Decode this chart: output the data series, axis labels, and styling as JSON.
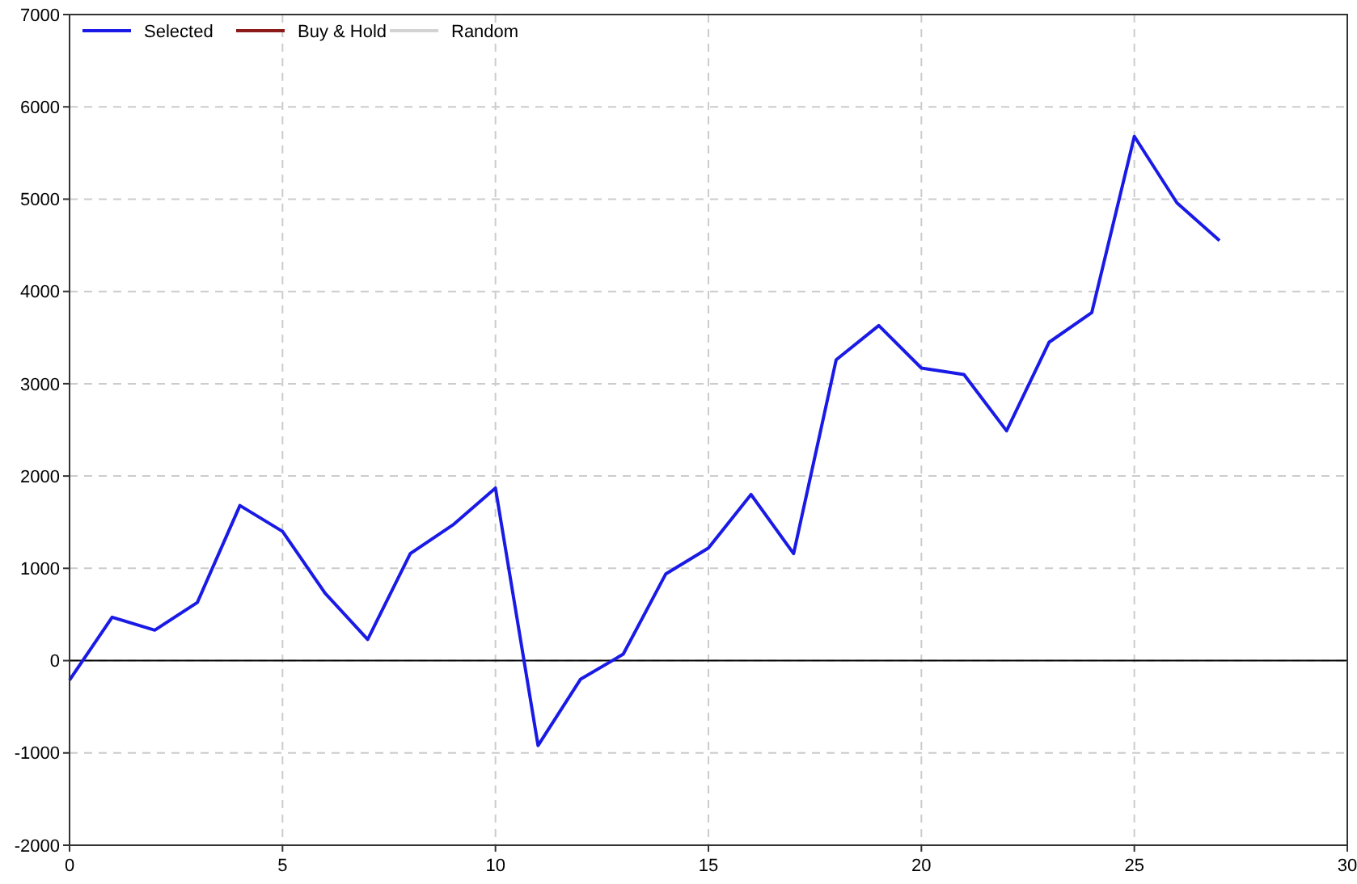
{
  "chart_data": {
    "type": "line",
    "x": [
      0,
      1,
      2,
      3,
      4,
      5,
      6,
      7,
      8,
      9,
      10,
      11,
      12,
      13,
      14,
      15,
      16,
      17,
      18,
      19,
      20,
      21,
      22,
      23,
      24,
      25,
      26,
      27
    ],
    "series": [
      {
        "name": "Selected",
        "color": "#1a1ae6",
        "values": [
          -210,
          470,
          330,
          630,
          1680,
          1400,
          730,
          230,
          1160,
          1470,
          1870,
          -920,
          -200,
          70,
          940,
          1220,
          1800,
          1160,
          3260,
          3630,
          3170,
          3100,
          2490,
          3450,
          3770,
          5680,
          4960,
          4550
        ]
      },
      {
        "name": "Buy & Hold",
        "color": "#8b1a1a",
        "values": [
          null,
          null,
          null,
          null,
          null,
          null,
          null,
          null,
          null,
          null,
          null,
          null,
          null,
          null,
          null,
          null,
          null,
          null,
          null,
          null,
          null,
          null,
          null,
          null,
          null,
          null,
          null,
          null
        ]
      },
      {
        "name": "Random",
        "color": "#d3d3d3",
        "values": [
          null,
          null,
          null,
          null,
          null,
          null,
          null,
          null,
          null,
          null,
          null,
          null,
          null,
          null,
          null,
          null,
          null,
          null,
          null,
          null,
          null,
          null,
          null,
          null,
          null,
          null,
          null,
          null
        ]
      }
    ],
    "xlim": [
      0,
      30
    ],
    "xticks": [
      0,
      5,
      10,
      15,
      20,
      25,
      30
    ],
    "ylim": [
      -2000,
      7000
    ],
    "yticks": [
      -2000,
      -1000,
      0,
      1000,
      2000,
      3000,
      4000,
      5000,
      6000,
      7000
    ],
    "ref_lines": [
      {
        "axis": "y",
        "value": 0,
        "color": "#000000"
      }
    ],
    "grid": true,
    "legend": "top left",
    "marker": "none",
    "line_style": "solid"
  }
}
